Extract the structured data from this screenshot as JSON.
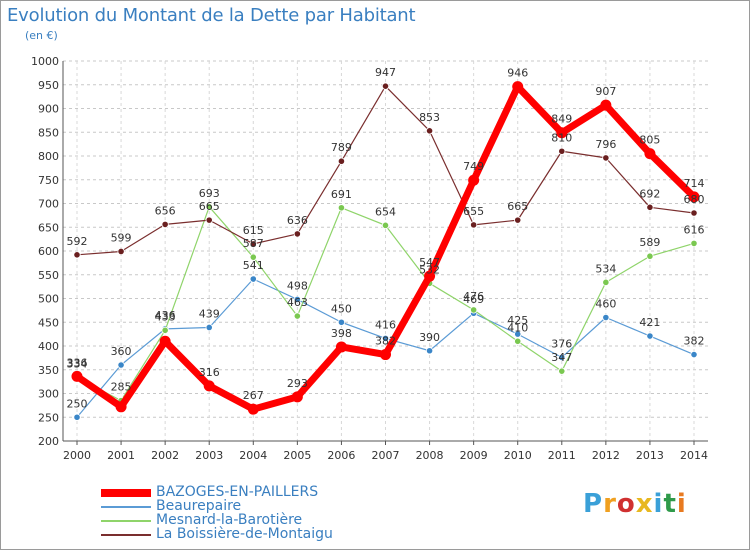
{
  "title": "Evolution du Montant de la Dette par Habitant",
  "subtitle": "(en €)",
  "logo": {
    "text": "Proxiti",
    "colors": [
      "#3aa0d8",
      "#f0a020",
      "#d03030",
      "#e8b820",
      "#3aa0d8",
      "#2f9a4a",
      "#e87a20"
    ]
  },
  "chart_data": {
    "type": "line",
    "title": "Evolution du Montant de la Dette par Habitant",
    "subtitle": "(en €)",
    "xlabel": "",
    "ylabel": "",
    "x": [
      "2000",
      "2001",
      "2002",
      "2003",
      "2004",
      "2005",
      "2006",
      "2007",
      "2008",
      "2009",
      "2010",
      "2011",
      "2012",
      "2013",
      "2014"
    ],
    "ylim": [
      200,
      1000
    ],
    "yticks": [
      "200",
      "250",
      "300",
      "350",
      "400",
      "450",
      "500",
      "550",
      "600",
      "650",
      "700",
      "750",
      "800",
      "850",
      "900",
      "950",
      "1000"
    ],
    "grid": "horizontal dashed",
    "legend": "bottom",
    "series": [
      {
        "name": "Beaurepaire",
        "color": "#5b9bd5",
        "marker": "#3a86c8",
        "width": 1.2,
        "values": [
          250,
          360,
          436,
          439,
          541,
          498,
          450,
          416,
          390,
          469,
          425,
          376,
          460,
          421,
          382
        ],
        "labels": [
          "250",
          "360",
          "436",
          "439",
          "541",
          "498",
          "450",
          "416",
          "390",
          "469",
          "425",
          "376",
          "460",
          "421",
          "382"
        ]
      },
      {
        "name": "Mesnard-la-Barotière",
        "color": "#8fd46a",
        "marker": "#7ac850",
        "width": 1.2,
        "values": [
          334,
          285,
          433,
          693,
          587,
          463,
          691,
          654,
          532,
          476,
          410,
          347,
          534,
          589,
          616
        ],
        "labels": [
          "334",
          "285",
          "433",
          "693",
          "587",
          "463",
          "691",
          "654",
          "532",
          "476",
          "410",
          "347",
          "534",
          "589",
          "616"
        ]
      },
      {
        "name": "La Boissière-de-Montaigu",
        "color": "#7a2e2e",
        "marker": "#6a1f1f",
        "width": 1.2,
        "values": [
          592,
          599,
          656,
          665,
          615,
          636,
          789,
          947,
          853,
          655,
          665,
          810,
          796,
          692,
          680
        ],
        "labels": [
          "592",
          "599",
          "656",
          "665",
          "615",
          "636",
          "789",
          "947",
          "853",
          "655",
          "665",
          "810",
          "796",
          "692",
          "680"
        ]
      },
      {
        "name": "BAZOGES-EN-PAILLERS",
        "color": "#ff0000",
        "marker": "#ff0000",
        "width": 7,
        "values": [
          336,
          272,
          410,
          316,
          267,
          293,
          398,
          382,
          547,
          749,
          946,
          849,
          907,
          805,
          714
        ],
        "labels": [
          "336",
          "",
          "",
          "316",
          "267",
          "293",
          "398",
          "382",
          "547",
          "749",
          "946",
          "849",
          "907",
          "805",
          "714"
        ]
      }
    ],
    "legend_order": [
      "BAZOGES-EN-PAILLERS",
      "Beaurepaire",
      "Mesnard-la-Barotière",
      "La Boissière-de-Montaigu"
    ]
  }
}
